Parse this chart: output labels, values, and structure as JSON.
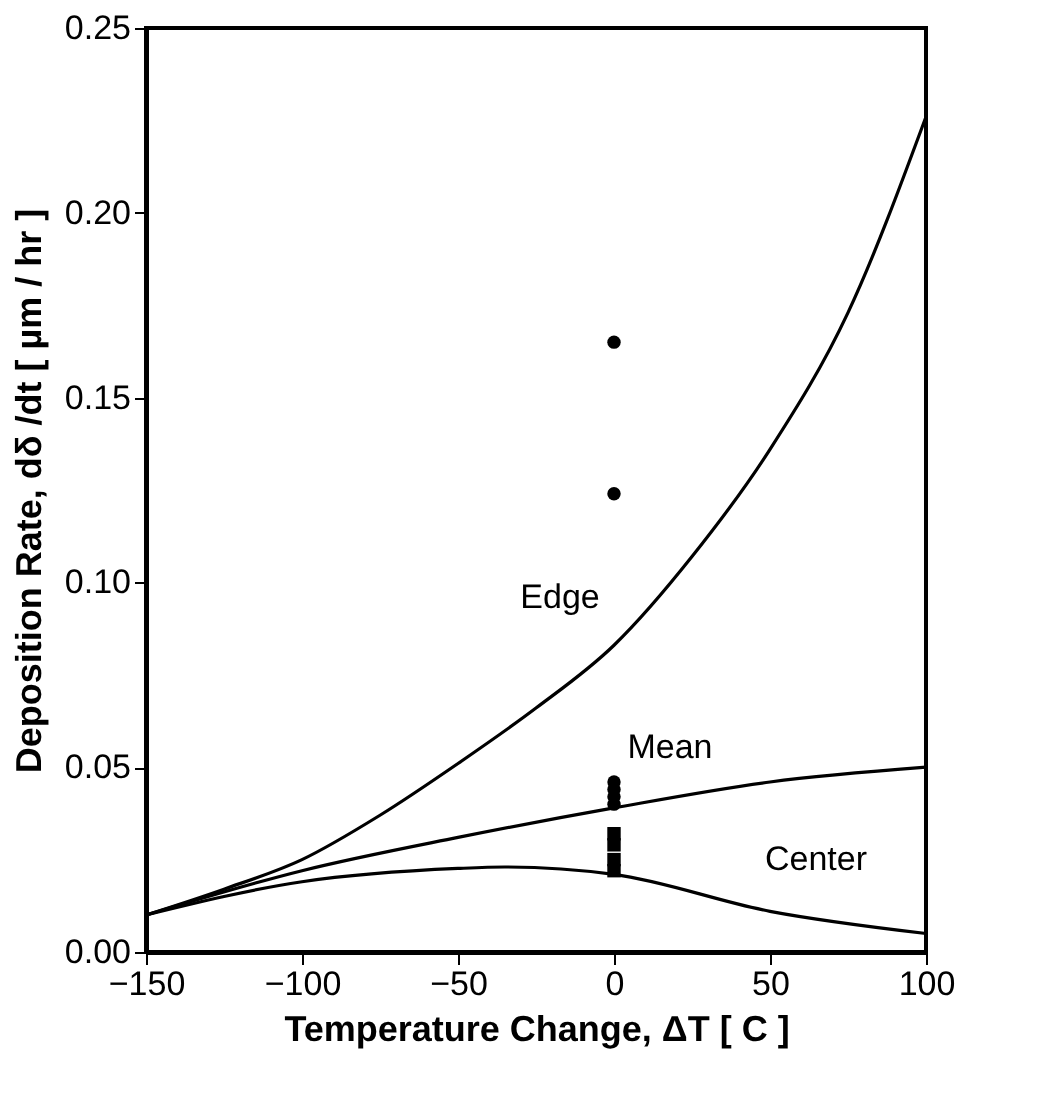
{
  "chart_data": {
    "type": "line",
    "xlabel": "Temperature Change, ΔT  [ C ]",
    "ylabel": "Deposition Rate, dδ /dt   [ µm / hr ]",
    "xlim": [
      -150,
      100
    ],
    "xticks": [
      -150,
      -100,
      -50,
      0,
      50,
      100
    ],
    "ylim": [
      0,
      0.25
    ],
    "yticks": [
      {
        "value": 0,
        "label": "0.00"
      },
      0.05,
      {
        "value": 0.1,
        "label": "0.10"
      },
      0.15,
      {
        "value": 0.2,
        "label": "0.20"
      },
      0.25
    ],
    "grid": false,
    "series": [
      {
        "color": "#000000",
        "x": [
          -150,
          -125,
          -100,
          -75,
          -50,
          -25,
          0,
          25,
          50,
          75,
          100
        ],
        "values": [
          0.01,
          0.017,
          0.025,
          0.037,
          0.051,
          0.066,
          0.083,
          0.107,
          0.136,
          0.173,
          0.226
        ]
      },
      {
        "color": "#000000",
        "x": [
          -150,
          -100,
          -50,
          0,
          50,
          100
        ],
        "values": [
          0.01,
          0.022,
          0.031,
          0.039,
          0.046,
          0.05
        ]
      },
      {
        "color": "#000000",
        "x": [
          -150,
          -100,
          -50,
          -35,
          0,
          50,
          100
        ],
        "values": [
          0.01,
          0.019,
          0.0226,
          0.023,
          0.021,
          0.011,
          0.005
        ]
      },
      {
        "type": "scatter",
        "marker": "circle",
        "color": "#000000",
        "x": [
          0,
          0,
          0,
          0,
          0,
          0
        ],
        "values": [
          0.165,
          0.124,
          0.046,
          0.044,
          0.042,
          0.04
        ]
      },
      {
        "type": "scatter",
        "marker": "square",
        "color": "#000000",
        "x": [
          0,
          0,
          0,
          0
        ],
        "values": [
          0.032,
          0.029,
          0.025,
          0.022
        ]
      }
    ],
    "annotations": [
      "Edge",
      "Mean",
      "Center"
    ]
  }
}
